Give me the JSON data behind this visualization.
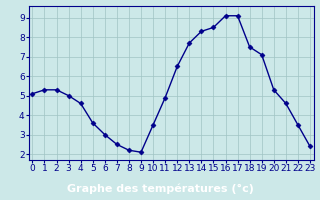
{
  "x": [
    0,
    1,
    2,
    3,
    4,
    5,
    6,
    7,
    8,
    9,
    10,
    11,
    12,
    13,
    14,
    15,
    16,
    17,
    18,
    19,
    20,
    21,
    22,
    23
  ],
  "y": [
    5.1,
    5.3,
    5.3,
    5.0,
    4.6,
    3.6,
    3.0,
    2.5,
    2.2,
    2.1,
    3.5,
    4.9,
    6.5,
    7.7,
    8.3,
    8.5,
    9.1,
    9.1,
    7.5,
    7.1,
    5.3,
    4.6,
    3.5,
    2.4
  ],
  "line_color": "#00008B",
  "marker": "D",
  "marker_size": 2.5,
  "bg_color": "#cce8e8",
  "grid_color": "#a0c4c4",
  "xlabel": "Graphe des températures (°c)",
  "xlabel_color": "#ffffff",
  "xlabel_bg_color": "#00008B",
  "xlabel_fontsize": 8,
  "yticks": [
    2,
    3,
    4,
    5,
    6,
    7,
    8,
    9
  ],
  "xticks": [
    0,
    1,
    2,
    3,
    4,
    5,
    6,
    7,
    8,
    9,
    10,
    11,
    12,
    13,
    14,
    15,
    16,
    17,
    18,
    19,
    20,
    21,
    22,
    23
  ],
  "ylim": [
    1.7,
    9.6
  ],
  "xlim": [
    -0.3,
    23.3
  ],
  "tick_color": "#00008B",
  "tick_fontsize": 6.5,
  "spine_color": "#00008B"
}
